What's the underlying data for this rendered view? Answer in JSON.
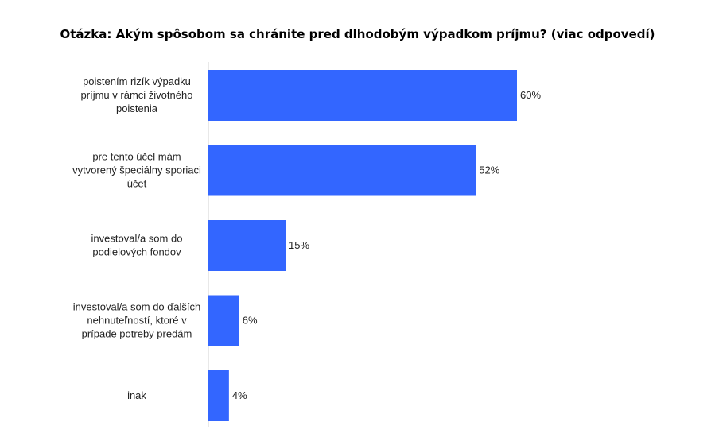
{
  "title": "Otázka: Akým spôsobom sa chránite pred dlhodobým výpadkom príjmu? (viac odpovedí)",
  "colors": {
    "bar": "#3366ff",
    "text": "#222222",
    "axis": "#d0d0d0"
  },
  "chart_data": {
    "type": "bar",
    "orientation": "horizontal",
    "title": "Otázka: Akým spôsobom sa chránite pred dlhodobým výpadkom príjmu? (viac odpovedí)",
    "categories": [
      [
        "poistením rizík výpadku",
        "príjmu v rámci životného",
        "poistenia"
      ],
      [
        "pre tento účel mám",
        "vytvorený špeciálny sporiaci",
        "účet"
      ],
      [
        "investoval/a som do",
        "podielových fondov"
      ],
      [
        "investoval/a som do ďalších",
        "nehnuteľností, ktoré v",
        "prípade potreby predám"
      ],
      [
        "inak"
      ]
    ],
    "values": [
      60,
      52,
      15,
      6,
      4
    ],
    "value_labels": [
      "60%",
      "52%",
      "15%",
      "6%",
      "4%"
    ],
    "unit": "%",
    "xlim": [
      0,
      60
    ],
    "grid": false,
    "legend": "none"
  }
}
